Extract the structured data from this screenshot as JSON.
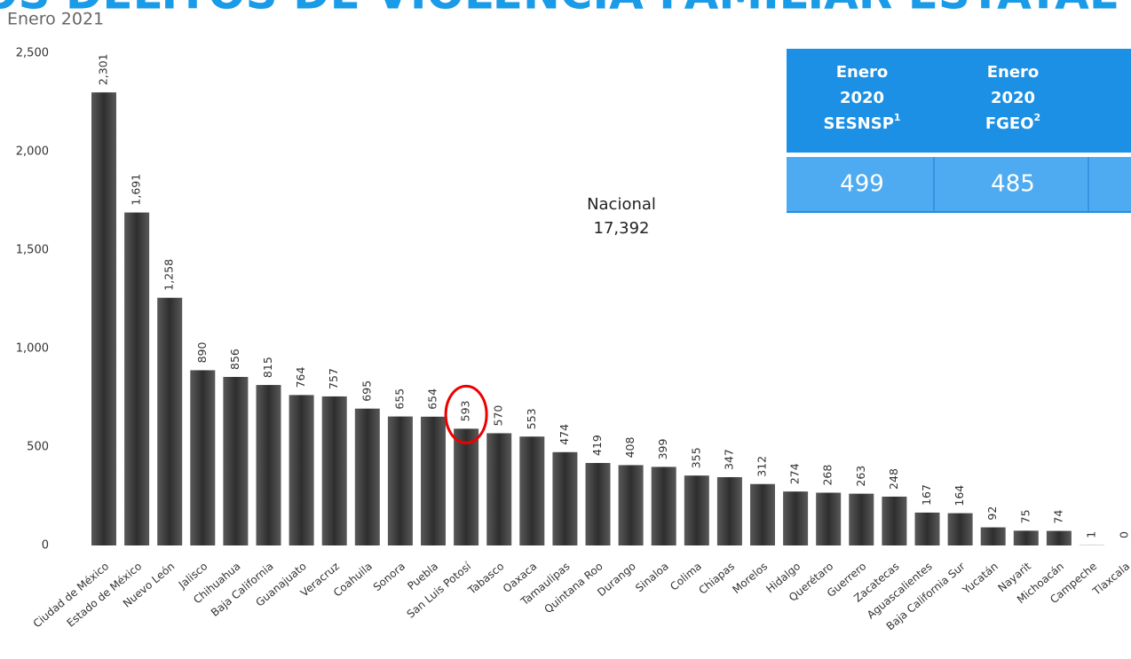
{
  "chart_data": {
    "type": "bar",
    "title": "OS DELITOS DE VIOLENCIA FAMILIAR ESTATAL",
    "subtitle": "Enero 2021",
    "categories": [
      "Ciudad de México",
      "Estado de México",
      "Nuevo León",
      "Jalisco",
      "Chihuahua",
      "Baja California",
      "Guanajuato",
      "Veracruz",
      "Coahuila",
      "Sonora",
      "Puebla",
      "San Luis Potosí",
      "Tabasco",
      "Oaxaca",
      "Tamaulipas",
      "Quintana Roo",
      "Durango",
      "Sinaloa",
      "Colima",
      "Chiapas",
      "Morelos",
      "Hidalgo",
      "Querétaro",
      "Guerrero",
      "Zacatecas",
      "Aguascalientes",
      "Baja California Sur",
      "Yucatán",
      "Nayarit",
      "Michoacán",
      "Campeche",
      "Tlaxcala"
    ],
    "values": [
      2301,
      1691,
      1258,
      890,
      856,
      815,
      764,
      757,
      695,
      655,
      654,
      593,
      570,
      553,
      474,
      419,
      408,
      399,
      355,
      347,
      312,
      274,
      268,
      263,
      248,
      167,
      164,
      92,
      75,
      74,
      1,
      0
    ],
    "value_labels": [
      "2,301",
      "1,691",
      "1,258",
      "890",
      "856",
      "815",
      "764",
      "757",
      "695",
      "655",
      "654",
      "593",
      "570",
      "553",
      "474",
      "419",
      "408",
      "399",
      "355",
      "347",
      "312",
      "274",
      "268",
      "263",
      "248",
      "167",
      "164",
      "92",
      "75",
      "74",
      "1",
      "0"
    ],
    "color": "#595959",
    "ylim": [
      0,
      2500
    ],
    "yticks": [
      0,
      500,
      {
        "value": 1000,
        "label": "1,000"
      },
      {
        "value": 1500,
        "label": "1,500"
      },
      {
        "value": 2000,
        "label": "2,000"
      },
      {
        "value": 2500,
        "label": "2,500"
      }
    ],
    "highlight": 11,
    "annotation": {
      "label": "Nacional",
      "value": "17,392"
    },
    "table": {
      "headers": [
        {
          "lines": [
            "Enero",
            "2020",
            "SESNSP"
          ],
          "note": "1"
        },
        {
          "lines": [
            "Enero",
            "2020",
            "FGEO"
          ],
          "note": "2"
        }
      ],
      "values": [
        "499",
        "485"
      ]
    }
  }
}
